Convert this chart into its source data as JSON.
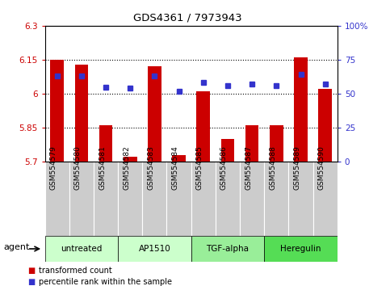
{
  "title": "GDS4361 / 7973943",
  "samples": [
    "GSM554579",
    "GSM554580",
    "GSM554581",
    "GSM554582",
    "GSM554583",
    "GSM554584",
    "GSM554585",
    "GSM554586",
    "GSM554587",
    "GSM554588",
    "GSM554589",
    "GSM554590"
  ],
  "red_values": [
    6.15,
    6.13,
    5.86,
    5.72,
    6.12,
    5.73,
    6.01,
    5.8,
    5.86,
    5.86,
    6.16,
    6.02
  ],
  "blue_values": [
    63,
    63,
    55,
    54,
    63,
    52,
    58,
    56,
    57,
    56,
    64,
    57
  ],
  "ymin": 5.7,
  "ymax": 6.3,
  "yticks": [
    5.7,
    5.85,
    6.0,
    6.15,
    6.3
  ],
  "ytick_labels": [
    "5.7",
    "5.85",
    "6",
    "6.15",
    "6.3"
  ],
  "y2min": 0,
  "y2max": 100,
  "y2ticks": [
    0,
    25,
    50,
    75,
    100
  ],
  "y2tick_labels": [
    "0",
    "25",
    "50",
    "75",
    "100%"
  ],
  "bar_color": "#cc0000",
  "dot_color": "#3333cc",
  "agent_groups": [
    {
      "label": "untreated",
      "start": 0,
      "end": 3,
      "color": "#ccffcc"
    },
    {
      "label": "AP1510",
      "start": 3,
      "end": 6,
      "color": "#ccffcc"
    },
    {
      "label": "TGF-alpha",
      "start": 6,
      "end": 9,
      "color": "#99ee99"
    },
    {
      "label": "Heregulin",
      "start": 9,
      "end": 12,
      "color": "#55dd55"
    }
  ],
  "legend_red": "transformed count",
  "legend_blue": "percentile rank within the sample",
  "left_tick_color": "#cc0000",
  "right_tick_color": "#3333cc",
  "tick_area_color": "#cccccc"
}
